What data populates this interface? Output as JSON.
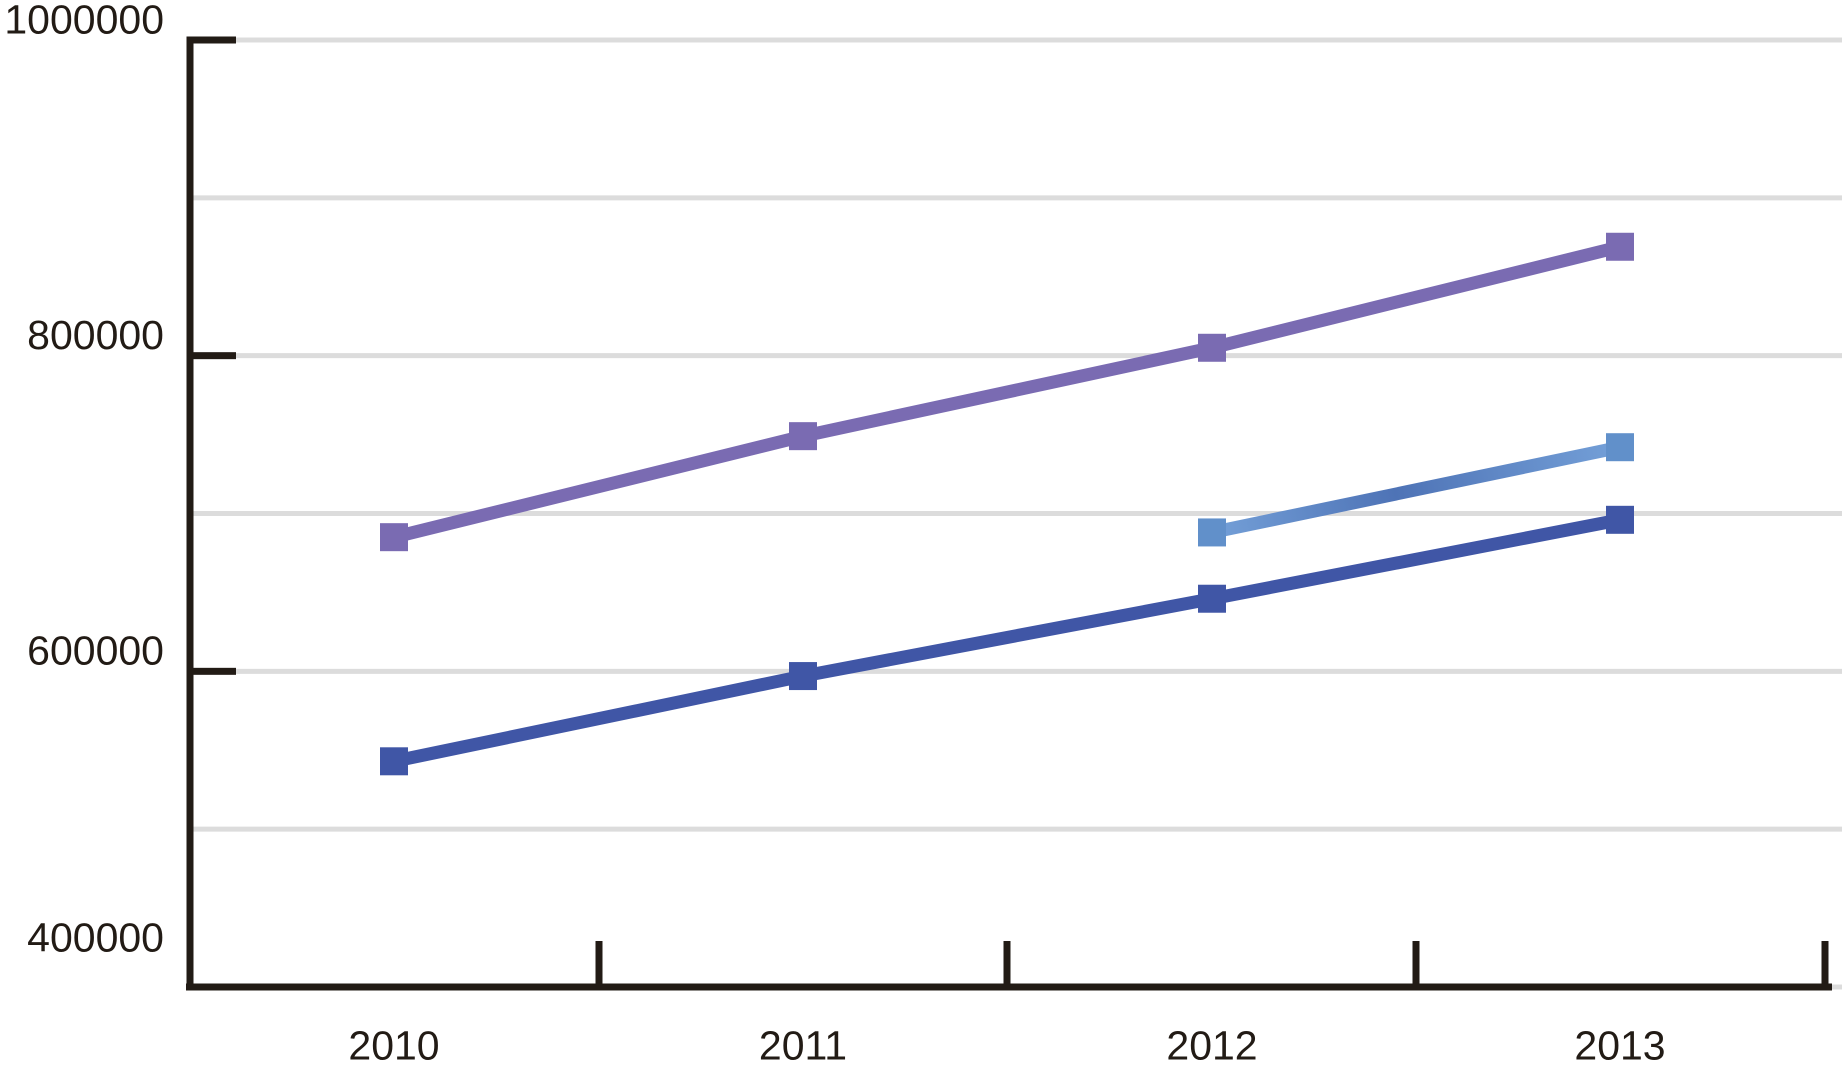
{
  "chart_data": {
    "type": "line",
    "title": "",
    "xlabel": "",
    "ylabel": "",
    "categories": [
      "2010",
      "2011",
      "2012",
      "2013"
    ],
    "series": [
      {
        "id": "series-1",
        "color": "#7A6BB2",
        "marker": "square",
        "values": [
          685000,
          749000,
          805000,
          869000
        ]
      },
      {
        "id": "series-2",
        "color": "#6190CA",
        "marker": "square",
        "line_gradient": [
          "#74A0D8",
          "#4E73B6",
          "#74A0D8"
        ],
        "values": [
          null,
          null,
          688000,
          742000
        ]
      },
      {
        "id": "series-3",
        "color": "#4056A6",
        "marker": "square",
        "values": [
          543000,
          597000,
          646000,
          696000
        ]
      }
    ],
    "ylim": [
      400000,
      1000000
    ],
    "ytick_labels": [
      "1000000",
      "800000",
      "600000",
      "400000"
    ],
    "gridline_step": 100000,
    "grid": "horizontal",
    "legend_position": "none"
  },
  "axis": {
    "line_color": "#221B15",
    "grid_color": "#DCDCDC",
    "text_color": "#221B15",
    "background": "#FFFFFF"
  }
}
